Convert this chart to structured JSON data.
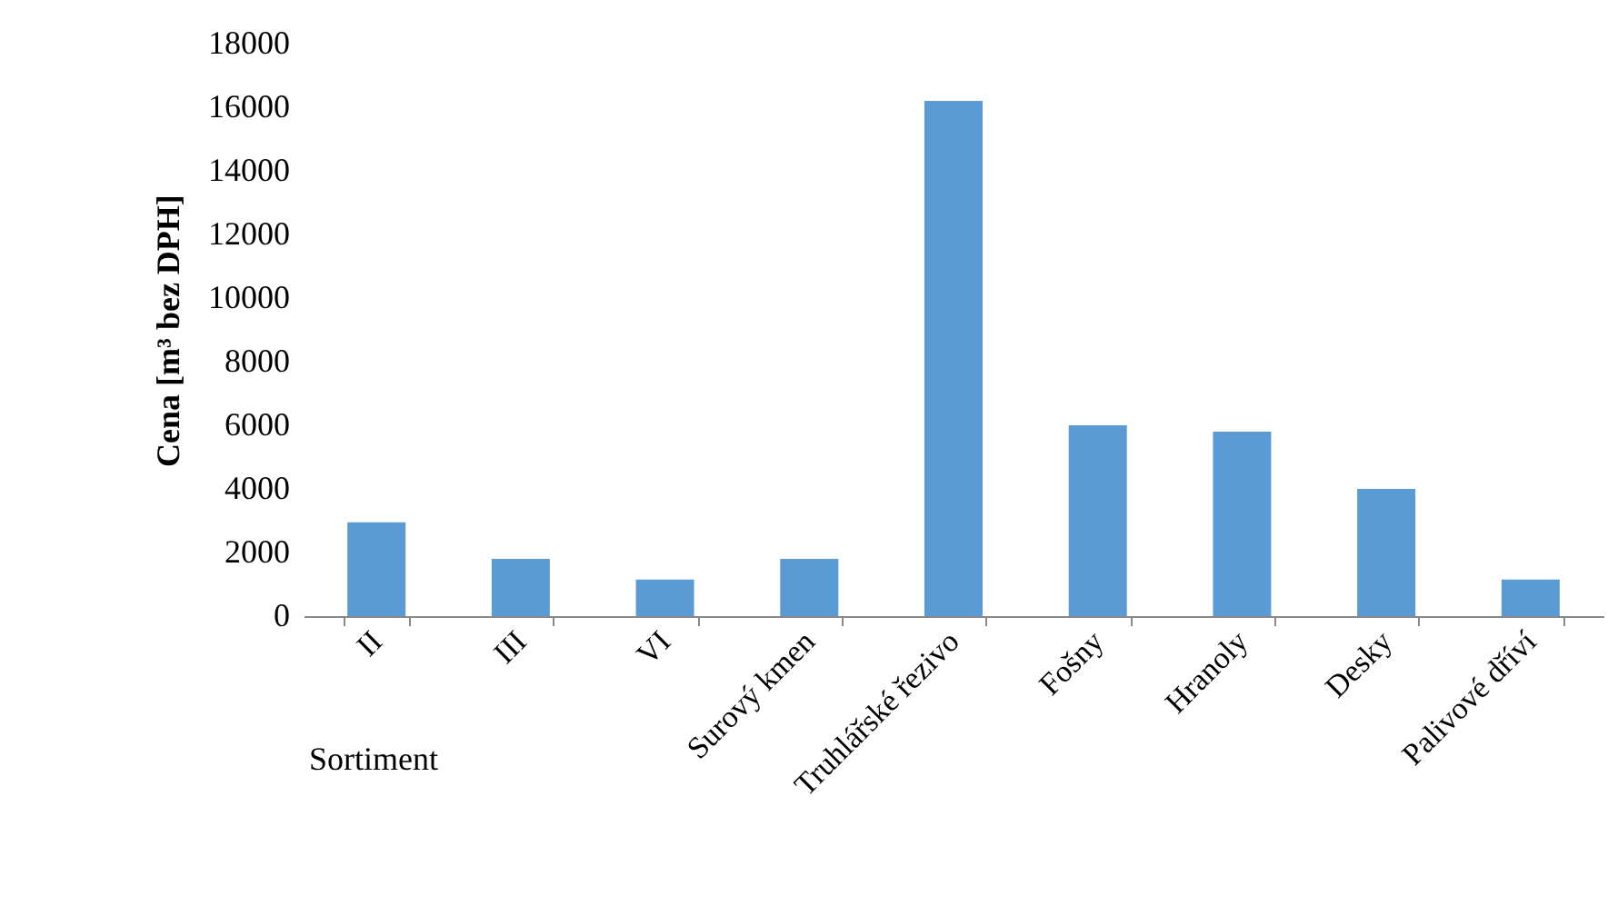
{
  "chart_data": {
    "type": "bar",
    "xlabel": "Sortiment",
    "ylabel": "Cena  [m³ bez DPH]",
    "categories": [
      "II",
      "III",
      "VI",
      "Surový kmen",
      "Truhlářské řezivo",
      "Fošny",
      "Hranoly",
      "Desky",
      "Palivové dříví"
    ],
    "values": [
      2950,
      1800,
      1150,
      1800,
      16200,
      6000,
      5800,
      4000,
      1150
    ],
    "color": "#5b9bd5",
    "ylim": [
      0,
      18000
    ],
    "yticks": [
      0,
      2000,
      4000,
      6000,
      8000,
      10000,
      12000,
      14000,
      16000,
      18000
    ],
    "grid": false
  }
}
